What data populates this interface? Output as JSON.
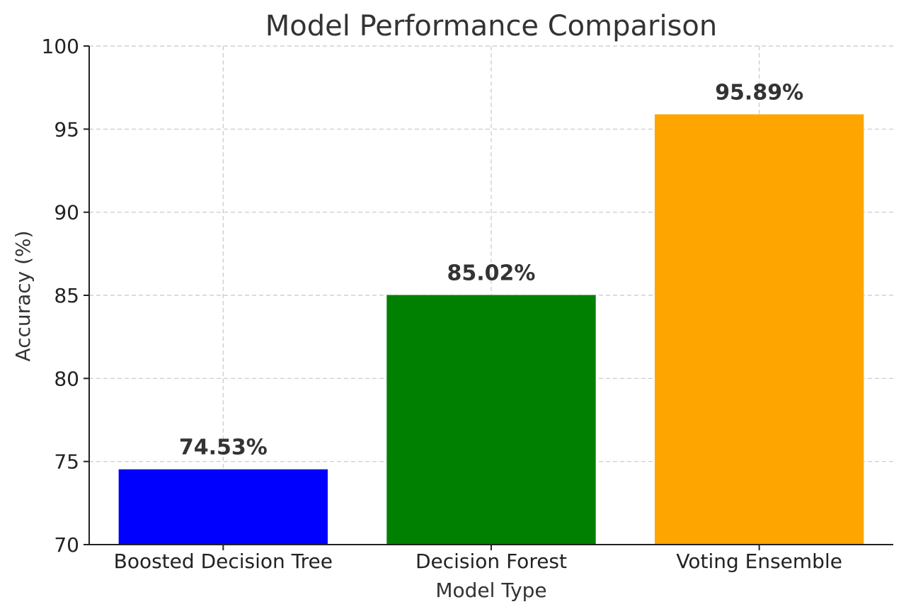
{
  "chart_data": {
    "type": "bar",
    "title": "Model Performance Comparison",
    "xlabel": "Model Type",
    "ylabel": "Accuracy (%)",
    "categories": [
      "Boosted Decision Tree",
      "Decision Forest",
      "Voting Ensemble"
    ],
    "values": [
      74.53,
      85.02,
      95.89
    ],
    "value_labels": [
      "74.53%",
      "85.02%",
      "95.89%"
    ],
    "colors": [
      "#0000ff",
      "#008000",
      "#ffa500"
    ],
    "ylim": [
      70,
      100
    ],
    "yticks": [
      70,
      75,
      80,
      85,
      90,
      95,
      100
    ],
    "grid": true,
    "legend": "none"
  }
}
